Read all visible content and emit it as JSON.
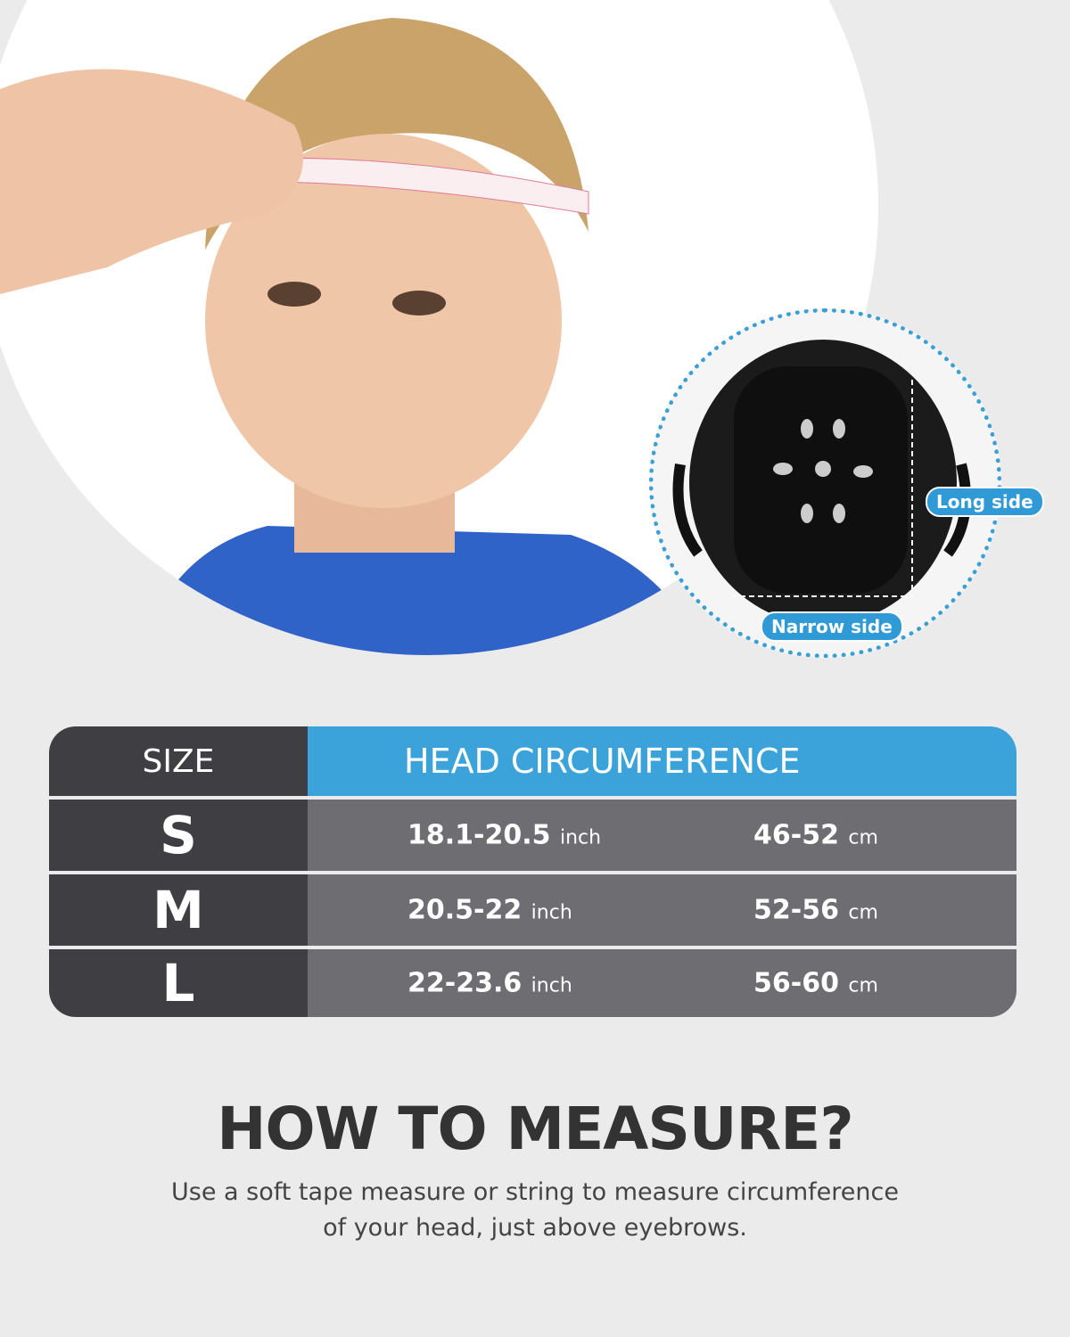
{
  "helmet_labels": {
    "long_side": "Long side",
    "narrow_side": "Narrow side"
  },
  "table": {
    "header": {
      "size": "SIZE",
      "circumference": "HEAD CIRCUMFERENCE"
    },
    "rows": [
      {
        "size": "S",
        "inch": "18.1-20.5",
        "inch_unit": "inch",
        "cm": "46-52",
        "cm_unit": "cm"
      },
      {
        "size": "M",
        "inch": "20.5-22",
        "inch_unit": "inch",
        "cm": "52-56",
        "cm_unit": "cm"
      },
      {
        "size": "L",
        "inch": "22-23.6",
        "inch_unit": "inch",
        "cm": "56-60",
        "cm_unit": "cm"
      }
    ]
  },
  "how_to": {
    "title": "HOW TO MEASURE?",
    "line1": "Use a soft tape measure or string to measure circumference",
    "line2": "of your head, just above eyebrows."
  },
  "colors": {
    "accent": "#3ba3d9",
    "dark": "#3f3f43",
    "row": "#6d6d72",
    "background": "#ecebec"
  }
}
